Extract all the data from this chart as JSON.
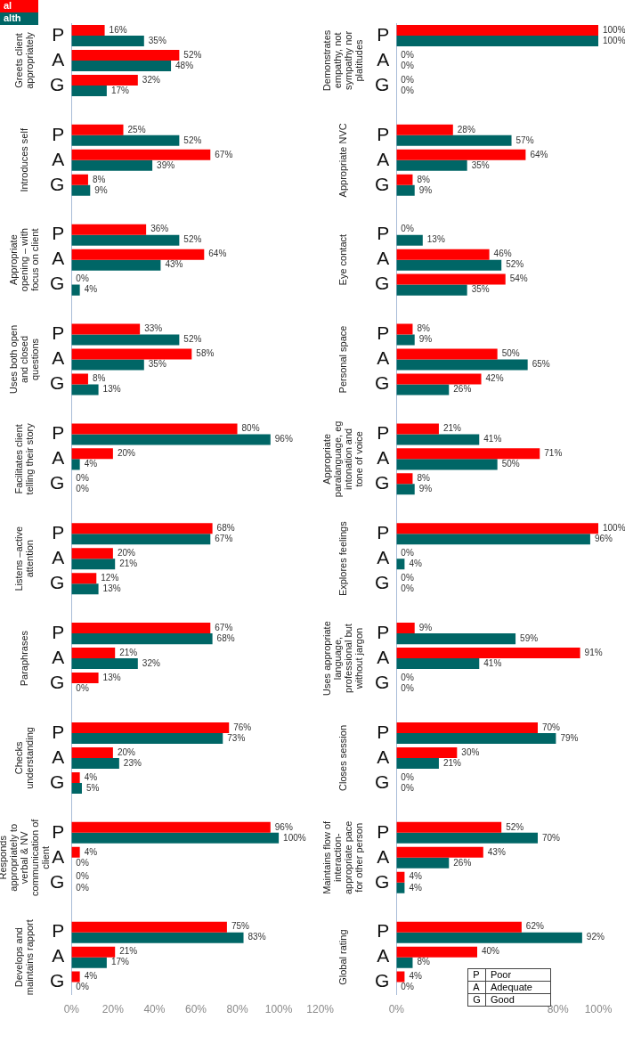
{
  "chart_data": [
    {
      "type": "bar",
      "orientation": "horizontal",
      "legend": "top left",
      "grid": false,
      "categories": [
        "P",
        "A",
        "G",
        null,
        "P",
        "A",
        "G",
        null,
        "P",
        "A",
        "G",
        null,
        "P",
        "A",
        "G",
        null,
        "P",
        "A",
        "G",
        null,
        "P",
        "A",
        "G",
        null,
        "P",
        "A",
        "G",
        null,
        "P",
        "A",
        "G",
        null,
        "P",
        "A",
        "G",
        null,
        "P",
        "A",
        "G"
      ],
      "series": [
        {
          "name": "al",
          "color": "#ff0000",
          "values": [
            16,
            52,
            32,
            null,
            25,
            67,
            8,
            null,
            36,
            64,
            0,
            null,
            33,
            58,
            8,
            null,
            80,
            20,
            0,
            null,
            68,
            20,
            12,
            null,
            67,
            21,
            13,
            null,
            76,
            20,
            4,
            null,
            96,
            4,
            0,
            null,
            75,
            21,
            4
          ],
          "value_labels": [
            "16%",
            "52%",
            "32%",
            null,
            "25%",
            "67%",
            "8%",
            null,
            "36%",
            "64%",
            "0%",
            null,
            "33%",
            "58%",
            "8%",
            null,
            "80%",
            "20%",
            "0%",
            null,
            "68%",
            "20%",
            "12%",
            null,
            "67%",
            "21%",
            "13%",
            null,
            "76%",
            "20%",
            "4%",
            null,
            "96%",
            "4%",
            "0%",
            null,
            "75%",
            "21%",
            "4%"
          ]
        },
        {
          "name": "alth",
          "color": "#006666",
          "values": [
            35,
            48,
            17,
            null,
            52,
            39,
            9,
            null,
            52,
            43,
            4,
            null,
            52,
            35,
            13,
            null,
            96,
            4,
            0,
            null,
            67,
            21,
            13,
            null,
            68,
            32,
            0,
            null,
            73,
            23,
            5,
            null,
            100,
            0,
            0,
            null,
            83,
            17,
            0
          ],
          "value_labels": [
            "35%",
            "48%",
            "17%",
            null,
            "52%",
            "39%",
            "9%",
            null,
            "52%",
            "43%",
            "4%",
            null,
            "52%",
            "35%",
            "13%",
            null,
            "96%",
            "4%",
            "0%",
            null,
            "67%",
            "21%",
            "13%",
            null,
            "68%",
            "32%",
            "0%",
            null,
            "73%",
            "23%",
            "5%",
            null,
            "100%",
            "0%",
            "0%",
            null,
            "83%",
            "17%",
            "0%"
          ]
        }
      ],
      "xlim": [
        0,
        120
      ],
      "xticks": [
        {
          "value": 0,
          "label": "0%"
        },
        {
          "value": 20,
          "label": "20%"
        },
        {
          "value": 40,
          "label": "40%"
        },
        {
          "value": 60,
          "label": "60%"
        },
        {
          "value": 80,
          "label": "80%"
        },
        {
          "value": 100,
          "label": "100%"
        },
        {
          "value": 120,
          "label": "120%"
        }
      ],
      "annotations": [
        "Greets client appropriately",
        "Introduces self",
        "Appropriate opening – with focus on client",
        "Uses both open and closed questions",
        "Facilitates client telling their story",
        "Listens –active attention",
        "Paraphrases",
        "Checks understanding",
        "Responds appropriately to verbal & NV communication of client",
        "Develops and maintains rapport"
      ]
    },
    {
      "type": "bar",
      "orientation": "horizontal",
      "grid": false,
      "categories": [
        "P",
        "A",
        "G",
        null,
        "P",
        "A",
        "G",
        null,
        "P",
        "A",
        "G",
        null,
        "P",
        "A",
        "G",
        null,
        "P",
        "A",
        "G",
        null,
        "P",
        "A",
        "G",
        null,
        "P",
        "A",
        "G",
        null,
        "P",
        "A",
        "G",
        null,
        "P",
        "A",
        "G",
        null,
        "P",
        "A",
        "G"
      ],
      "series": [
        {
          "color": "#ff0000",
          "values": [
            100,
            0,
            0,
            null,
            28,
            64,
            8,
            null,
            0,
            46,
            54,
            null,
            8,
            50,
            42,
            null,
            21,
            71,
            8,
            null,
            100,
            0,
            0,
            null,
            9,
            91,
            0,
            null,
            70,
            30,
            0,
            null,
            52,
            43,
            4,
            null,
            62,
            40,
            4
          ],
          "value_labels": [
            "100%",
            "0%",
            "0%",
            null,
            "28%",
            "64%",
            "8%",
            null,
            "0%",
            "46%",
            "54%",
            null,
            "8%",
            "50%",
            "42%",
            null,
            "21%",
            "71%",
            "8%",
            null,
            "100%",
            "0%",
            "0%",
            null,
            "9%",
            "91%",
            "0%",
            null,
            "70%",
            "30%",
            "0%",
            null,
            "52%",
            "43%",
            "4%",
            null,
            "62%",
            "40%",
            "4%"
          ]
        },
        {
          "color": "#006666",
          "values": [
            100,
            0,
            0,
            null,
            57,
            35,
            9,
            null,
            13,
            52,
            35,
            null,
            9,
            65,
            26,
            null,
            41,
            50,
            9,
            null,
            96,
            4,
            0,
            null,
            59,
            41,
            0,
            null,
            79,
            21,
            0,
            null,
            70,
            26,
            4,
            null,
            92,
            8,
            0
          ],
          "value_labels": [
            "100%",
            "0%",
            "0%",
            null,
            "57%",
            "35%",
            "9%",
            null,
            "13%",
            "52%",
            "35%",
            null,
            "9%",
            "65%",
            "26%",
            null,
            "41%",
            "50%",
            "9%",
            null,
            "96%",
            "4%",
            "0%",
            null,
            "59%",
            "41%",
            "0%",
            null,
            "79%",
            "21%",
            "0%",
            null,
            "70%",
            "26%",
            "4%",
            null,
            "92%",
            "8%",
            "0%"
          ]
        }
      ],
      "xlim": [
        0,
        100
      ],
      "xticks": [
        {
          "value": 0,
          "label": "0%"
        },
        {
          "value": 80,
          "label": "80%"
        },
        {
          "value": 100,
          "label": "100%"
        }
      ],
      "annotations": [
        "Demonstrates empathy, not sympathy nor platitudes",
        "Appropriate NVC",
        "Eye contact",
        "Personal space",
        "Appropriate paralanguage, eg intonation and tone of voice",
        "Explores feelings",
        "Uses appropriate language, professional but without jargon",
        "Closes session",
        "Maintains flow of interaction- appropriate pace for other person",
        "Global rating",
        "P Poor",
        "A Adequate",
        "G Good"
      ]
    }
  ]
}
